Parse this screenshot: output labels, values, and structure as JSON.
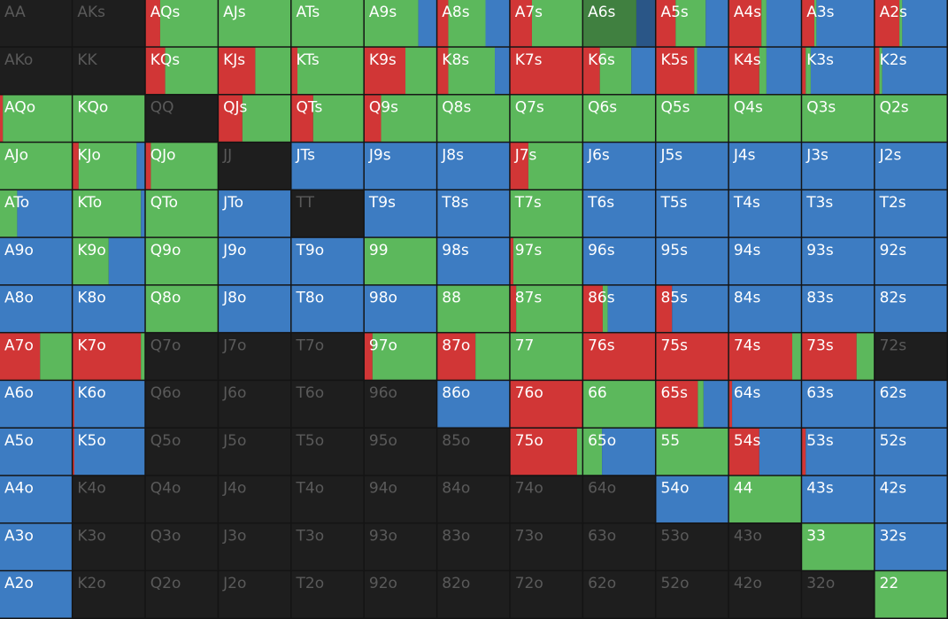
{
  "grid": {
    "colors": [
      "#d13636",
      "#5cb85c",
      "#3d7cc2"
    ],
    "empty_color": "#1e1e1e",
    "selected": [
      0,
      8
    ],
    "hands": [
      [
        "AA",
        "AKs",
        "AQs",
        "AJs",
        "ATs",
        "A9s",
        "A8s",
        "A7s",
        "A6s",
        "A5s",
        "A4s",
        "A3s",
        "A2s"
      ],
      [
        "AKo",
        "KK",
        "KQs",
        "KJs",
        "KTs",
        "K9s",
        "K8s",
        "K7s",
        "K6s",
        "K5s",
        "K4s",
        "K3s",
        "K2s"
      ],
      [
        "AQo",
        "KQo",
        "QQ",
        "QJs",
        "QTs",
        "Q9s",
        "Q8s",
        "Q7s",
        "Q6s",
        "Q5s",
        "Q4s",
        "Q3s",
        "Q2s"
      ],
      [
        "AJo",
        "KJo",
        "QJo",
        "JJ",
        "JTs",
        "J9s",
        "J8s",
        "J7s",
        "J6s",
        "J5s",
        "J4s",
        "J3s",
        "J2s"
      ],
      [
        "ATo",
        "KTo",
        "QTo",
        "JTo",
        "TT",
        "T9s",
        "T8s",
        "T7s",
        "T6s",
        "T5s",
        "T4s",
        "T3s",
        "T2s"
      ],
      [
        "A9o",
        "K9o",
        "Q9o",
        "J9o",
        "T9o",
        "99",
        "98s",
        "97s",
        "96s",
        "95s",
        "94s",
        "93s",
        "92s"
      ],
      [
        "A8o",
        "K8o",
        "Q8o",
        "J8o",
        "T8o",
        "98o",
        "88",
        "87s",
        "86s",
        "85s",
        "84s",
        "83s",
        "82s"
      ],
      [
        "A7o",
        "K7o",
        "Q7o",
        "J7o",
        "T7o",
        "97o",
        "87o",
        "77",
        "76s",
        "75s",
        "74s",
        "73s",
        "72s"
      ],
      [
        "A6o",
        "K6o",
        "Q6o",
        "J6o",
        "T6o",
        "96o",
        "86o",
        "76o",
        "66",
        "65s",
        "64s",
        "63s",
        "62s"
      ],
      [
        "A5o",
        "K5o",
        "Q5o",
        "J5o",
        "T5o",
        "95o",
        "85o",
        "75o",
        "65o",
        "55",
        "54s",
        "53s",
        "52s"
      ],
      [
        "A4o",
        "K4o",
        "Q4o",
        "J4o",
        "T4o",
        "94o",
        "84o",
        "74o",
        "64o",
        "54o",
        "44",
        "43s",
        "42s"
      ],
      [
        "A3o",
        "K3o",
        "Q3o",
        "J3o",
        "T3o",
        "93o",
        "83o",
        "73o",
        "63o",
        "53o",
        "43o",
        "33",
        "32s"
      ],
      [
        "A2o",
        "K2o",
        "Q2o",
        "J2o",
        "T2o",
        "92o",
        "82o",
        "72o",
        "62o",
        "52o",
        "42o",
        "32o",
        "22"
      ]
    ],
    "mix": [
      [
        [
          0,
          0,
          0
        ],
        [
          0,
          0,
          0
        ],
        [
          20,
          80,
          0
        ],
        [
          0,
          100,
          0
        ],
        [
          0,
          100,
          0
        ],
        [
          0,
          75,
          25
        ],
        [
          15,
          52,
          33
        ],
        [
          30,
          70,
          0
        ],
        [
          0,
          74,
          26
        ],
        [
          27,
          42,
          31
        ],
        [
          45,
          7,
          48
        ],
        [
          17,
          3,
          80
        ],
        [
          34,
          4,
          62
        ]
      ],
      [
        [
          0,
          0,
          0
        ],
        [
          0,
          0,
          0
        ],
        [
          27,
          73,
          0
        ],
        [
          51,
          49,
          0
        ],
        [
          8,
          92,
          0
        ],
        [
          57,
          43,
          0
        ],
        [
          15,
          65,
          20
        ],
        [
          100,
          0,
          0
        ],
        [
          23,
          44,
          33
        ],
        [
          53,
          4,
          43
        ],
        [
          42,
          10,
          48
        ],
        [
          5,
          7,
          88
        ],
        [
          6,
          4,
          90
        ]
      ],
      [
        [
          4,
          96,
          0
        ],
        [
          0,
          100,
          0
        ],
        [
          0,
          0,
          0
        ],
        [
          33,
          67,
          0
        ],
        [
          30,
          70,
          0
        ],
        [
          23,
          77,
          0
        ],
        [
          0,
          100,
          0
        ],
        [
          0,
          100,
          0
        ],
        [
          0,
          100,
          0
        ],
        [
          0,
          100,
          0
        ],
        [
          0,
          100,
          0
        ],
        [
          0,
          100,
          0
        ],
        [
          0,
          100,
          0
        ]
      ],
      [
        [
          0,
          100,
          0
        ],
        [
          8,
          81,
          11
        ],
        [
          7,
          93,
          0
        ],
        [
          0,
          0,
          0
        ],
        [
          0,
          0,
          100
        ],
        [
          0,
          0,
          100
        ],
        [
          0,
          0,
          100
        ],
        [
          25,
          75,
          0
        ],
        [
          0,
          0,
          100
        ],
        [
          0,
          0,
          100
        ],
        [
          0,
          0,
          100
        ],
        [
          0,
          0,
          100
        ],
        [
          0,
          0,
          100
        ]
      ],
      [
        [
          0,
          24,
          76
        ],
        [
          0,
          95,
          5
        ],
        [
          0,
          100,
          0
        ],
        [
          0,
          0,
          100
        ],
        [
          0,
          0,
          0
        ],
        [
          0,
          0,
          100
        ],
        [
          0,
          0,
          100
        ],
        [
          0,
          100,
          0
        ],
        [
          0,
          0,
          100
        ],
        [
          0,
          0,
          100
        ],
        [
          0,
          0,
          100
        ],
        [
          0,
          0,
          100
        ],
        [
          0,
          0,
          100
        ]
      ],
      [
        [
          0,
          0,
          100
        ],
        [
          0,
          50,
          50
        ],
        [
          0,
          100,
          0
        ],
        [
          0,
          0,
          100
        ],
        [
          0,
          0,
          100
        ],
        [
          0,
          100,
          0
        ],
        [
          0,
          0,
          100
        ],
        [
          4,
          96,
          0
        ],
        [
          0,
          0,
          100
        ],
        [
          0,
          0,
          100
        ],
        [
          0,
          0,
          100
        ],
        [
          0,
          0,
          100
        ],
        [
          0,
          0,
          100
        ]
      ],
      [
        [
          0,
          0,
          100
        ],
        [
          0,
          0,
          100
        ],
        [
          0,
          100,
          0
        ],
        [
          0,
          0,
          100
        ],
        [
          0,
          0,
          100
        ],
        [
          0,
          0,
          100
        ],
        [
          0,
          100,
          0
        ],
        [
          8,
          92,
          0
        ],
        [
          27,
          7,
          66
        ],
        [
          22,
          0,
          78
        ],
        [
          0,
          0,
          100
        ],
        [
          0,
          0,
          100
        ],
        [
          0,
          0,
          100
        ]
      ],
      [
        [
          56,
          44,
          0
        ],
        [
          95,
          5,
          0
        ],
        [
          0,
          0,
          0
        ],
        [
          0,
          0,
          0
        ],
        [
          0,
          0,
          0
        ],
        [
          11,
          89,
          0
        ],
        [
          53,
          47,
          0
        ],
        [
          0,
          100,
          0
        ],
        [
          100,
          0,
          0
        ],
        [
          100,
          0,
          0
        ],
        [
          88,
          12,
          0
        ],
        [
          76,
          24,
          0
        ],
        [
          0,
          0,
          0
        ]
      ],
      [
        [
          0,
          0,
          100
        ],
        [
          2,
          0,
          98
        ],
        [
          0,
          0,
          0
        ],
        [
          0,
          0,
          0
        ],
        [
          0,
          0,
          0
        ],
        [
          0,
          0,
          0
        ],
        [
          0,
          0,
          100
        ],
        [
          100,
          0,
          0
        ],
        [
          0,
          100,
          0
        ],
        [
          58,
          8,
          34
        ],
        [
          4,
          0,
          96
        ],
        [
          0,
          0,
          100
        ],
        [
          0,
          0,
          100
        ]
      ],
      [
        [
          0,
          0,
          100
        ],
        [
          2,
          0,
          98
        ],
        [
          0,
          0,
          0
        ],
        [
          0,
          0,
          0
        ],
        [
          0,
          0,
          0
        ],
        [
          0,
          0,
          0
        ],
        [
          0,
          0,
          0
        ],
        [
          93,
          7,
          0
        ],
        [
          0,
          26,
          74
        ],
        [
          0,
          100,
          0
        ],
        [
          42,
          0,
          58
        ],
        [
          5,
          0,
          95
        ],
        [
          0,
          0,
          100
        ]
      ],
      [
        [
          0,
          0,
          100
        ],
        [
          0,
          0,
          0
        ],
        [
          0,
          0,
          0
        ],
        [
          0,
          0,
          0
        ],
        [
          0,
          0,
          0
        ],
        [
          0,
          0,
          0
        ],
        [
          0,
          0,
          0
        ],
        [
          0,
          0,
          0
        ],
        [
          0,
          0,
          0
        ],
        [
          0,
          0,
          100
        ],
        [
          0,
          100,
          0
        ],
        [
          0,
          0,
          100
        ],
        [
          0,
          0,
          100
        ]
      ],
      [
        [
          0,
          0,
          100
        ],
        [
          0,
          0,
          0
        ],
        [
          0,
          0,
          0
        ],
        [
          0,
          0,
          0
        ],
        [
          0,
          0,
          0
        ],
        [
          0,
          0,
          0
        ],
        [
          0,
          0,
          0
        ],
        [
          0,
          0,
          0
        ],
        [
          0,
          0,
          0
        ],
        [
          0,
          0,
          0
        ],
        [
          0,
          0,
          0
        ],
        [
          0,
          100,
          0
        ],
        [
          0,
          0,
          100
        ]
      ],
      [
        [
          0,
          0,
          100
        ],
        [
          0,
          0,
          0
        ],
        [
          0,
          0,
          0
        ],
        [
          0,
          0,
          0
        ],
        [
          0,
          0,
          0
        ],
        [
          0,
          0,
          0
        ],
        [
          0,
          0,
          0
        ],
        [
          0,
          0,
          0
        ],
        [
          0,
          0,
          0
        ],
        [
          0,
          0,
          0
        ],
        [
          0,
          0,
          0
        ],
        [
          0,
          0,
          0
        ],
        [
          0,
          100,
          0
        ]
      ]
    ]
  }
}
